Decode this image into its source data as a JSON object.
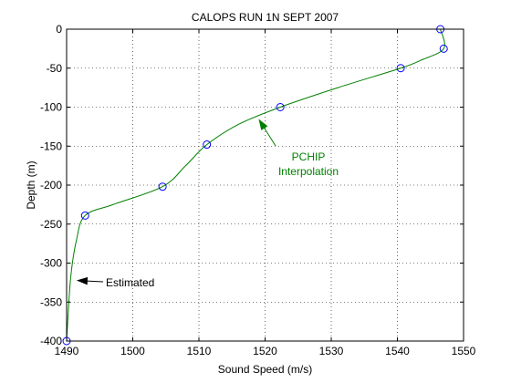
{
  "chart_data": {
    "type": "line",
    "title": "CALOPS RUN 1N SEPT 2007",
    "xlabel": "Sound Speed (m/s)",
    "ylabel": "Depth (m)",
    "xlim": [
      1490,
      1550
    ],
    "ylim": [
      -400,
      0
    ],
    "x_ticks": [
      1490,
      1500,
      1510,
      1520,
      1530,
      1540,
      1550
    ],
    "y_ticks": [
      0,
      -50,
      -100,
      -150,
      -200,
      -250,
      -300,
      -350,
      -400
    ],
    "grid": true,
    "series": [
      {
        "role": "interpolated-profile",
        "color": "#008000",
        "points": [
          [
            1546.5,
            0
          ],
          [
            1547.0,
            -25
          ],
          [
            1543.5,
            -40
          ],
          [
            1540.5,
            -50
          ],
          [
            1531.0,
            -75
          ],
          [
            1522.3,
            -100
          ],
          [
            1516.0,
            -122
          ],
          [
            1511.2,
            -148
          ],
          [
            1508.0,
            -175
          ],
          [
            1504.5,
            -202
          ],
          [
            1497.0,
            -225
          ],
          [
            1492.8,
            -239
          ],
          [
            1491.5,
            -270
          ],
          [
            1490.6,
            -320
          ],
          [
            1490.0,
            -400
          ]
        ]
      },
      {
        "role": "measured-points",
        "color": "#0000ff",
        "marker": "circle",
        "points": [
          [
            1546.5,
            0
          ],
          [
            1547.0,
            -25
          ],
          [
            1540.5,
            -50
          ],
          [
            1522.3,
            -100
          ],
          [
            1511.2,
            -148
          ],
          [
            1504.5,
            -202
          ],
          [
            1492.8,
            -239
          ],
          [
            1490.0,
            -400
          ]
        ]
      }
    ],
    "annotations": [
      {
        "id": "pchip",
        "lines": [
          "PCHIP",
          "Interpolation"
        ],
        "color": "#008000",
        "arrow_to": [
          1519.0,
          -112
        ],
        "text_at": [
          1521.5,
          -170
        ]
      },
      {
        "id": "estimated",
        "lines": [
          "Estimated"
        ],
        "color": "#000000",
        "arrow_to": [
          1491.3,
          -320
        ],
        "text_at": [
          1494.0,
          -326
        ]
      }
    ]
  }
}
